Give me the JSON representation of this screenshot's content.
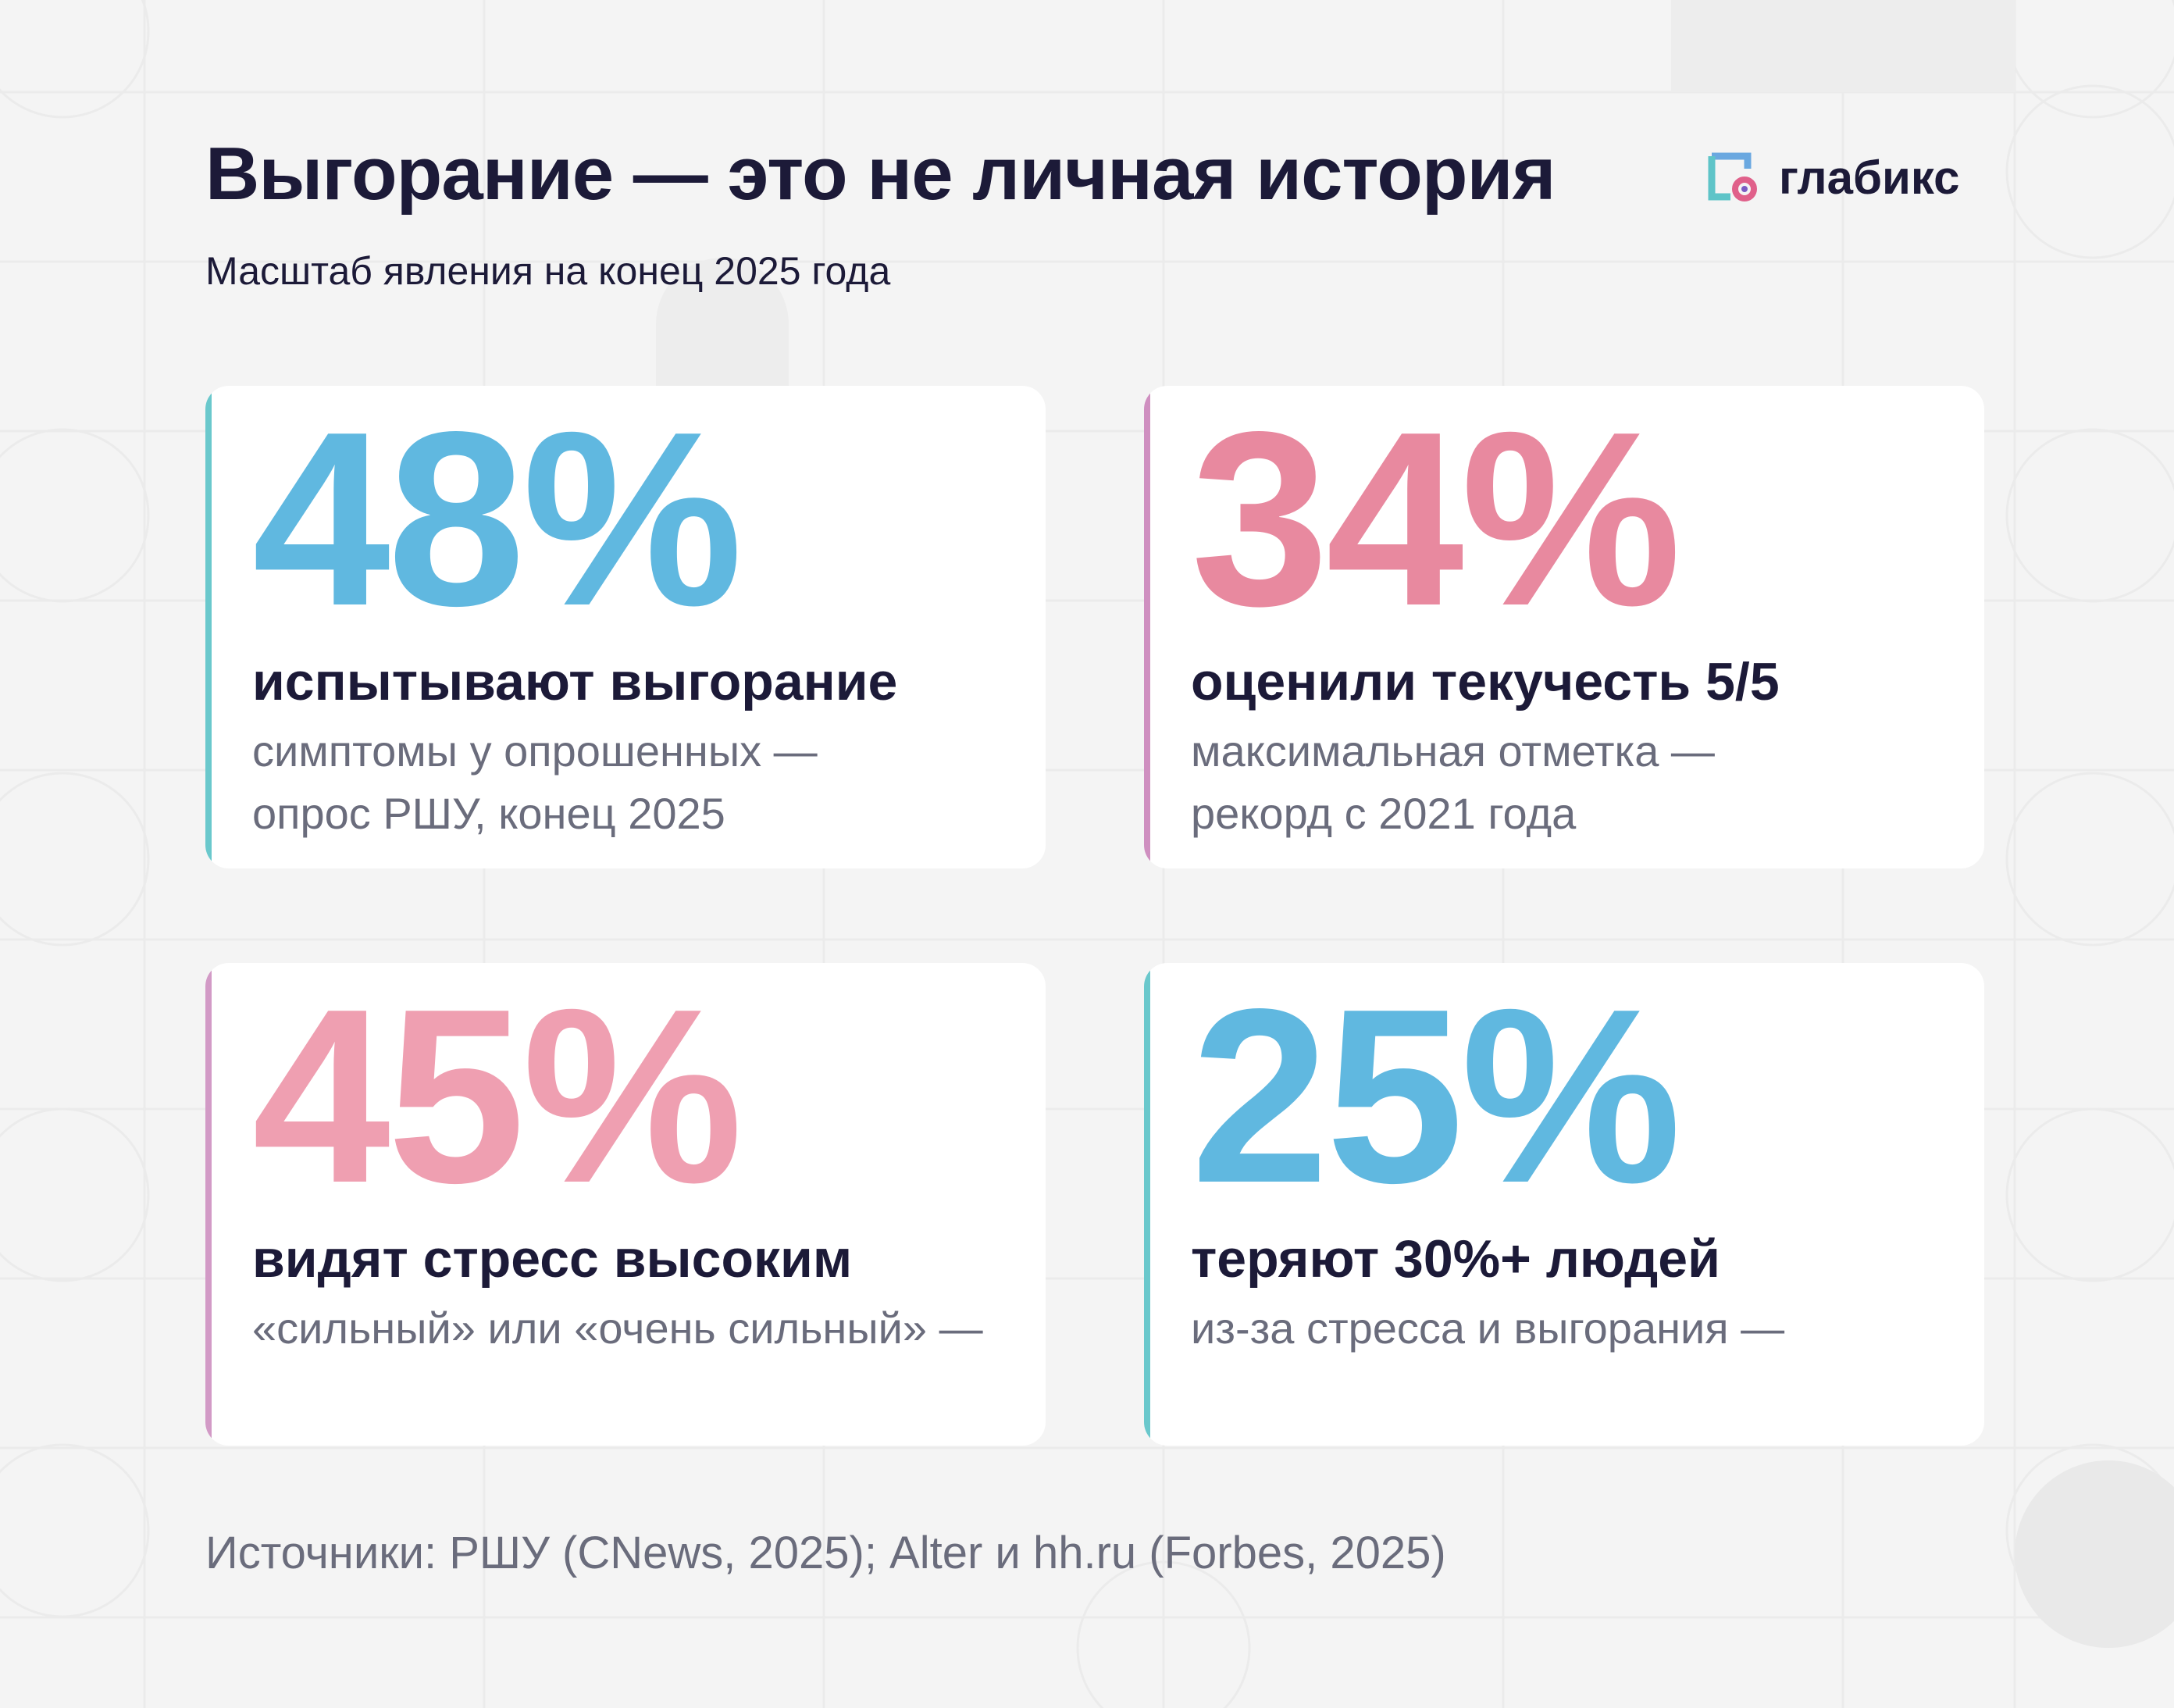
{
  "title": "Выгорание — это не личная история",
  "subtitle": "Масштаб явления на конец 2025 года",
  "brand": {
    "name": "глабикс",
    "logo_icon": "glabix-logo-icon",
    "colors": {
      "frame_a": "#5ec4c8",
      "frame_b": "#6aa8e0",
      "dot": "#e0608a"
    }
  },
  "stats": [
    {
      "value": "48%",
      "label": "испытывают выгорание",
      "desc": [
        "симптомы у опрошенных —",
        "опрос РШУ, конец 2025"
      ],
      "number_color": "#60b8e0",
      "accent_color": "#6ac8cc"
    },
    {
      "value": "34%",
      "label": "оценили текучесть 5/5",
      "desc": [
        "максимальная отметка —",
        "рекорд с 2021 года"
      ],
      "number_color": "#e8899f",
      "accent_color": "#cf8fc0"
    },
    {
      "value": "45%",
      "label": "видят стресс высоким",
      "desc": [
        "«сильный» или «очень сильный» —",
        ""
      ],
      "number_color": "#ef9fb1",
      "accent_color": "#d29ac6"
    },
    {
      "value": "25%",
      "label": "теряют 30%+ людей",
      "desc": [
        "из-за стресса и выгорания —",
        ""
      ],
      "number_color": "#60b8e0",
      "accent_color": "#6ac8cc"
    }
  ],
  "sources": "Источники: РШУ (CNews, 2025); Alter и hh.ru (Forbes, 2025)"
}
